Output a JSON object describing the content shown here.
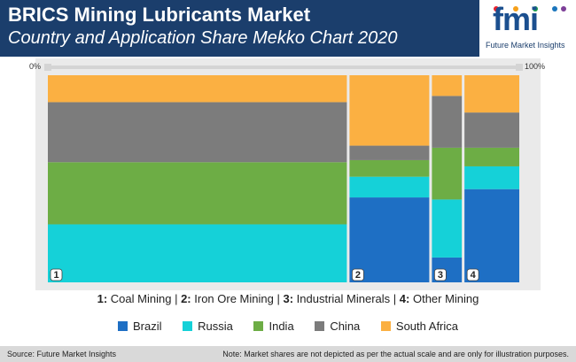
{
  "header": {
    "title": "BRICS Mining Lubricants Market",
    "subtitle": "Country and Application Share Mekko Chart 2020"
  },
  "logo": {
    "mark": "fmi",
    "name": "Future Market Insights",
    "colors": [
      "#e8212e",
      "#f6a01a",
      "#1b9e4b",
      "#1b75bc",
      "#7d3f98"
    ]
  },
  "axis": {
    "left_label": "0%",
    "right_label": "100%"
  },
  "chart_data": {
    "type": "mekko",
    "x_axis_labels": [
      "0%",
      "100%"
    ],
    "categories": [
      "1",
      "2",
      "3",
      "4"
    ],
    "category_widths": [
      60,
      16,
      6,
      11
    ],
    "series": [
      {
        "name": "Brazil",
        "color": "#1e6fc4",
        "values": [
          0,
          41,
          12,
          45
        ]
      },
      {
        "name": "Russia",
        "color": "#15d1d8",
        "values": [
          28,
          10,
          28,
          11
        ]
      },
      {
        "name": "India",
        "color": "#6dad45",
        "values": [
          30,
          8,
          25,
          9
        ]
      },
      {
        "name": "China",
        "color": "#7c7c7c",
        "values": [
          29,
          7,
          25,
          17
        ]
      },
      {
        "name": "South Africa",
        "color": "#fbb042",
        "values": [
          13,
          34,
          10,
          18
        ]
      }
    ],
    "legend_position": "bottom"
  },
  "applications": [
    {
      "num": "1:",
      "name": "Coal Mining"
    },
    {
      "num": "2:",
      "name": "Iron Ore Mining"
    },
    {
      "num": "3:",
      "name": "Industrial Minerals"
    },
    {
      "num": "4:",
      "name": "Other Mining"
    }
  ],
  "footer": {
    "source": "Source: Future Market Insights",
    "note": "Note: Market shares are not depicted as per the actual scale and are only for illustration purposes."
  }
}
